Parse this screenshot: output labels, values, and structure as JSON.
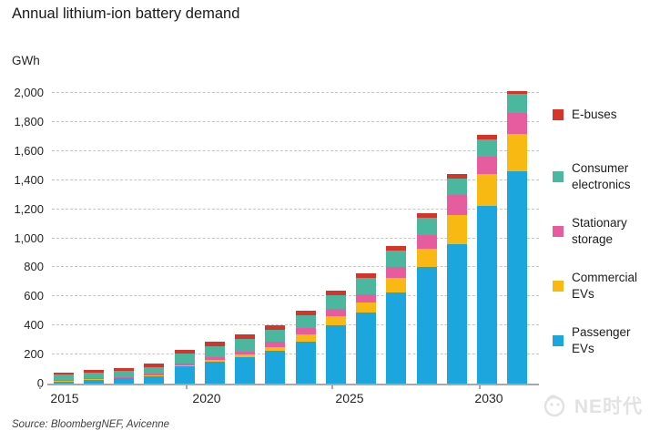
{
  "title": "Annual lithium-ion battery demand",
  "source": "Source: BloombergNEF, Avicenne",
  "watermark": {
    "text": "NE时代"
  },
  "chart_data": {
    "type": "bar",
    "stacked": true,
    "title": "Annual lithium-ion battery demand",
    "ylabel": "GWh",
    "ylim": [
      0,
      2000
    ],
    "y_tick_step": 200,
    "grid": "horizontal-dashed",
    "legend_position": "right",
    "categories": [
      2015,
      2016,
      2017,
      2018,
      2019,
      2020,
      2021,
      2022,
      2023,
      2024,
      2025,
      2026,
      2027,
      2028,
      2029,
      2030
    ],
    "x_axis_labels": [
      "2015",
      "2020",
      "2025",
      "2030"
    ],
    "series": [
      {
        "name": "Passenger EVs",
        "color": "#1BA6DE",
        "values": [
          20,
          30,
          38,
          52,
          120,
          150,
          185,
          225,
          290,
          400,
          490,
          630,
          800,
          960,
          1220,
          1460
        ]
      },
      {
        "name": "Commercial EVs",
        "color": "#F8B912",
        "values": [
          2,
          2,
          3,
          4,
          6,
          15,
          16,
          26,
          48,
          65,
          70,
          95,
          125,
          200,
          220,
          260
        ]
      },
      {
        "name": "Stationary storage",
        "color": "#E75C9F",
        "values": [
          2,
          3,
          5,
          10,
          14,
          20,
          20,
          35,
          45,
          50,
          52,
          75,
          100,
          135,
          120,
          140
        ]
      },
      {
        "name": "Consumer electronics",
        "color": "#4BB79F",
        "values": [
          40,
          42,
          44,
          48,
          64,
          72,
          85,
          85,
          85,
          95,
          113,
          116,
          116,
          116,
          118,
          133
        ]
      },
      {
        "name": "E-buses",
        "color": "#D5342B",
        "values": [
          14,
          15,
          18,
          25,
          26,
          30,
          30,
          30,
          32,
          30,
          34,
          30,
          30,
          32,
          32,
          18
        ]
      }
    ],
    "totals": [
      78,
      92,
      108,
      139,
      230,
      287,
      336,
      401,
      500,
      640,
      759,
      946,
      1171,
      1443,
      1710,
      2011
    ]
  }
}
